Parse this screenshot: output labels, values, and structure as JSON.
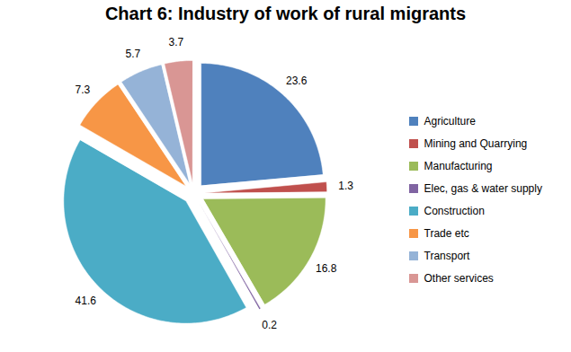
{
  "chart_data": {
    "type": "pie",
    "title": "Chart 6: Industry of work of rural migrants",
    "categories": [
      "Agriculture",
      "Mining and Quarrying",
      "Manufacturing",
      "Elec, gas & water supply",
      "Construction",
      "Trade etc",
      "Transport",
      "Other services"
    ],
    "values": [
      23.6,
      1.3,
      16.8,
      0.2,
      41.6,
      7.3,
      5.7,
      3.7
    ],
    "colors": [
      "#4f81bd",
      "#c0504d",
      "#9bbb59",
      "#8064a2",
      "#4bacc6",
      "#f79646",
      "#95b3d7",
      "#d99694"
    ],
    "data_labels": true,
    "legend": "right"
  }
}
